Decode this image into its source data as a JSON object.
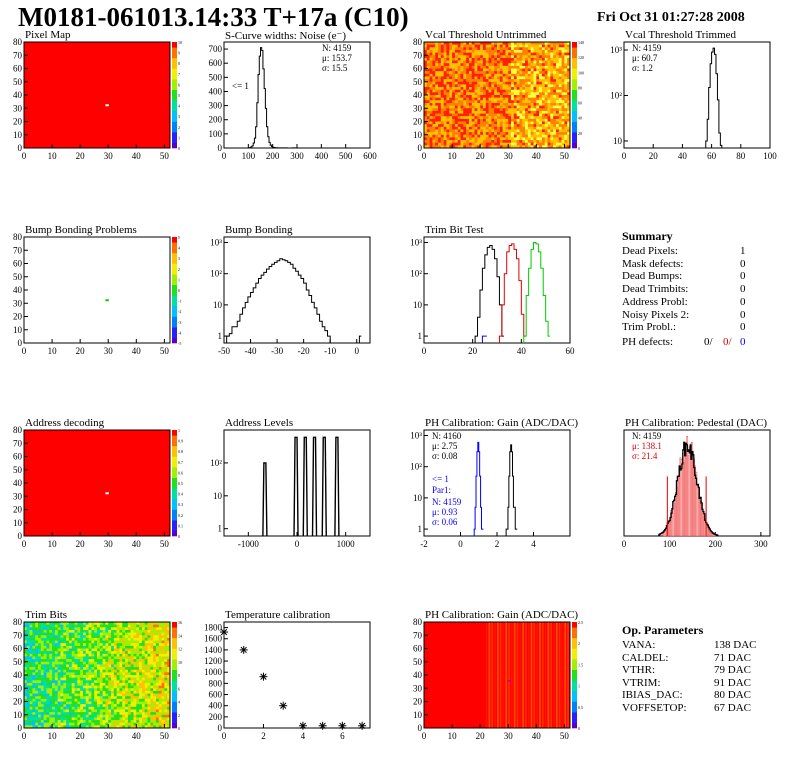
{
  "header": {
    "title": "M0181-061013.14:33 T+17a (C10)",
    "date": "Fri Oct 31 01:27:28 2008"
  },
  "colors": {
    "red": "#ff0000",
    "green": "#00cc00",
    "blue": "#0000ff",
    "yellow": "#ffff33",
    "orange": "#ff9900",
    "black": "#000000"
  },
  "chart_data": [
    {
      "id": "pixel_map",
      "type": "heatmap",
      "title": "Pixel Map",
      "xlim": [
        0,
        52
      ],
      "ylim": [
        0,
        80
      ],
      "xticks": [
        0,
        10,
        20,
        30,
        40,
        50
      ],
      "yticks": [
        0,
        10,
        20,
        30,
        40,
        50,
        60,
        70,
        80
      ],
      "zticks": [
        "0",
        "1",
        "2",
        "3",
        "4",
        "5",
        "6",
        "7",
        "8",
        "9",
        "10"
      ],
      "zlim": [
        0,
        10
      ],
      "fill_value": 10,
      "special_cells": [
        {
          "x": 29,
          "y": 32,
          "z": 0,
          "color": "#ffffff"
        }
      ]
    },
    {
      "id": "scurve",
      "type": "line",
      "title": "S-Curve widths: Noise (e⁻)",
      "xlim": [
        0,
        600
      ],
      "ylim": [
        0,
        750
      ],
      "xticks": [
        0,
        100,
        200,
        300,
        400,
        500,
        600
      ],
      "yticks": [
        0,
        100,
        200,
        300,
        400,
        500,
        600,
        700
      ],
      "stats": {
        "n": "N: 4159",
        "mu": "μ: 153.7",
        "sigma": "σ: 15.5"
      },
      "annotation": "<= 1",
      "x": [
        90,
        100,
        110,
        115,
        120,
        125,
        130,
        135,
        140,
        145,
        150,
        155,
        160,
        165,
        170,
        175,
        180,
        185,
        190,
        195,
        200,
        205,
        210,
        220,
        240,
        260,
        280,
        300
      ],
      "y": [
        0,
        2,
        8,
        15,
        35,
        70,
        150,
        320,
        520,
        650,
        710,
        690,
        560,
        420,
        280,
        150,
        80,
        40,
        20,
        10,
        5,
        3,
        2,
        1,
        1,
        0,
        1,
        0
      ]
    },
    {
      "id": "vcal_untrimmed",
      "type": "heatmap",
      "title": "Vcal Threshold Untrimmed",
      "xlim": [
        0,
        52
      ],
      "ylim": [
        0,
        80
      ],
      "xticks": [
        0,
        10,
        20,
        30,
        40,
        50
      ],
      "yticks": [
        0,
        10,
        20,
        30,
        40,
        50,
        60,
        70,
        80
      ],
      "zticks": [
        "0",
        "20",
        "40",
        "60",
        "80",
        "100",
        "120",
        "140"
      ],
      "zlim": [
        0,
        150
      ]
    },
    {
      "id": "vcal_trimmed",
      "type": "line",
      "title": "Vcal Threshold Trimmed",
      "log": true,
      "xlim": [
        0,
        100
      ],
      "ylim": [
        7,
        1500
      ],
      "xticks": [
        0,
        20,
        40,
        60,
        80,
        100
      ],
      "yticks": [
        10,
        100,
        1000
      ],
      "yticklabels": [
        "10",
        "10²",
        "10³"
      ],
      "stats": {
        "n": "N: 4159",
        "mu": "μ: 60.7",
        "sigma": "σ:  1.2"
      },
      "x": [
        55,
        56,
        57,
        58,
        59,
        60,
        61,
        62,
        63,
        64,
        65,
        66,
        67
      ],
      "y": [
        7,
        10,
        30,
        150,
        500,
        900,
        1100,
        800,
        300,
        80,
        15,
        8,
        7
      ]
    },
    {
      "id": "bump_problems",
      "type": "heatmap",
      "title": "Bump Bonding Problems",
      "xlim": [
        0,
        52
      ],
      "ylim": [
        0,
        80
      ],
      "xticks": [
        0,
        10,
        20,
        30,
        40,
        50
      ],
      "yticks": [
        0,
        10,
        20,
        30,
        40,
        50,
        60,
        70,
        80
      ],
      "zticks": [
        "-5",
        "-4",
        "-3",
        "-2",
        "-1",
        "0",
        "1",
        "2",
        "3",
        "4",
        "5"
      ],
      "zlim": [
        -5,
        5
      ],
      "special_cells": [
        {
          "x": 29,
          "y": 32,
          "z": 1,
          "color": "#00cc00"
        }
      ]
    },
    {
      "id": "bump_bonding",
      "type": "line",
      "title": "Bump Bonding",
      "log": true,
      "xlim": [
        -50,
        5
      ],
      "ylim": [
        0.6,
        1500
      ],
      "xticks": [
        -50,
        -40,
        -30,
        -20,
        -10,
        0
      ],
      "yticks": [
        1,
        10,
        100,
        1000
      ],
      "yticklabels": [
        "1",
        "10",
        "10²",
        "10³"
      ],
      "x": [
        -49,
        -48,
        -47,
        -46,
        -45,
        -44,
        -43,
        -42,
        -41,
        -40,
        -39,
        -38,
        -37,
        -36,
        -35,
        -34,
        -33,
        -32,
        -31,
        -30,
        -29,
        -28,
        -27,
        -26,
        -25,
        -24,
        -23,
        -22,
        -21,
        -20,
        -19,
        -18,
        -17,
        -16,
        -15,
        -14,
        -13,
        -12,
        -11,
        -10,
        1
      ],
      "y": [
        1,
        1.2,
        2,
        2,
        3,
        5,
        8,
        12,
        18,
        25,
        35,
        50,
        70,
        90,
        110,
        140,
        170,
        200,
        230,
        260,
        300,
        280,
        260,
        230,
        200,
        150,
        120,
        90,
        70,
        50,
        30,
        20,
        12,
        8,
        5,
        3,
        2,
        1.5,
        1,
        0.6,
        1
      ]
    },
    {
      "id": "trim_bit_test",
      "type": "line",
      "title": "Trim Bit Test",
      "log": true,
      "xlim": [
        0,
        60
      ],
      "ylim": [
        0.6,
        1500
      ],
      "xticks": [
        0,
        20,
        40,
        60
      ],
      "yticks": [
        1,
        10,
        100,
        1000
      ],
      "yticklabels": [
        "1",
        "10",
        "10²",
        "10³"
      ],
      "series": [
        {
          "color": "#000000",
          "x": [
            21,
            22,
            23,
            24,
            25,
            26,
            27,
            28,
            29,
            30,
            31,
            32
          ],
          "y": [
            1,
            4,
            30,
            150,
            400,
            700,
            800,
            600,
            300,
            80,
            10,
            1
          ]
        },
        {
          "color": "#e00000",
          "x": [
            31,
            32,
            33,
            34,
            35,
            36,
            37,
            38,
            39,
            40,
            41
          ],
          "y": [
            1,
            10,
            100,
            500,
            800,
            900,
            600,
            300,
            60,
            5,
            1
          ]
        },
        {
          "color": "#00cc00",
          "x": [
            41,
            42,
            43,
            44,
            45,
            46,
            47,
            48,
            49,
            50,
            51
          ],
          "y": [
            1,
            20,
            150,
            600,
            1000,
            900,
            500,
            150,
            20,
            3,
            1
          ]
        },
        {
          "color": "#0000ff",
          "x": [
            24,
            25
          ],
          "y": [
            1,
            1
          ]
        }
      ]
    },
    {
      "id": "address_decoding",
      "type": "heatmap",
      "title": "Address decoding",
      "xlim": [
        0,
        52
      ],
      "ylim": [
        0,
        80
      ],
      "xticks": [
        0,
        10,
        20,
        30,
        40,
        50
      ],
      "yticks": [
        0,
        10,
        20,
        30,
        40,
        50,
        60,
        70,
        80
      ],
      "zticks": [
        "0",
        "0.1",
        "0.2",
        "0.3",
        "0.4",
        "0.5",
        "0.6",
        "0.7",
        "0.8",
        "0.9",
        "1"
      ],
      "zlim": [
        0,
        1
      ],
      "fill_value": 1,
      "special_cells": [
        {
          "x": 29,
          "y": 32,
          "z": 0,
          "color": "#ffffff"
        }
      ]
    },
    {
      "id": "address_levels",
      "type": "line",
      "title": "Address Levels",
      "log": true,
      "xlim": [
        -1500,
        1500
      ],
      "ylim": [
        0.6,
        1000
      ],
      "xticks": [
        -1000,
        0,
        1000
      ],
      "yticks": [
        1,
        10,
        100
      ],
      "yticklabels": [
        "1",
        "10",
        "10²"
      ],
      "peaks": [
        {
          "x": -660,
          "h": 100
        },
        {
          "x": -20,
          "h": 600
        },
        {
          "x": 170,
          "h": 600
        },
        {
          "x": 360,
          "h": 600
        },
        {
          "x": 560,
          "h": 600
        },
        {
          "x": 820,
          "h": 600
        }
      ]
    },
    {
      "id": "ph_gain",
      "type": "line",
      "title": "PH Calibration: Gain (ADC/DAC)",
      "log": true,
      "xlim": [
        -2,
        6
      ],
      "ylim": [
        0.6,
        1500
      ],
      "xticks": [
        -2,
        0,
        2,
        4
      ],
      "yticks": [
        1,
        10,
        100,
        1000
      ],
      "yticklabels": [
        "1",
        "10",
        "10²",
        "10³"
      ],
      "stats": {
        "n": "N: 4160",
        "mu": "μ: 2.75",
        "sigma": "σ: 0.08"
      },
      "stats2": {
        "lt": "<= 1",
        "par": "Par1:",
        "n": "N: 4159",
        "mu": "μ: 0.93",
        "sigma": "σ: 0.06"
      },
      "series": [
        {
          "color": "#000000",
          "x": [
            2.5,
            2.6,
            2.65,
            2.7,
            2.75,
            2.8,
            2.85,
            2.9,
            3.0
          ],
          "y": [
            1,
            5,
            50,
            300,
            500,
            300,
            50,
            5,
            1
          ]
        },
        {
          "color": "#0000ff",
          "x": [
            0.75,
            0.8,
            0.85,
            0.9,
            0.95,
            1.0,
            1.05,
            1.1,
            1.15
          ],
          "y": [
            1,
            5,
            50,
            300,
            600,
            300,
            50,
            5,
            1
          ]
        }
      ]
    },
    {
      "id": "ph_pedestal",
      "type": "bar",
      "title": "PH Calibration: Pedestal (DAC)",
      "xlim": [
        0,
        320
      ],
      "ylim": [
        0,
        80
      ],
      "xticks": [
        0,
        100,
        200,
        300
      ],
      "stats": {
        "n": "N: 4159",
        "mu": "μ: 138.1",
        "sigma": "σ: 21.4"
      },
      "mu": 138,
      "sigma": 21.4,
      "peak": 68,
      "fit_lines": [
        95,
        180
      ]
    },
    {
      "id": "trim_bits",
      "type": "heatmap",
      "title": "Trim Bits",
      "xlim": [
        0,
        52
      ],
      "ylim": [
        0,
        80
      ],
      "xticks": [
        0,
        10,
        20,
        30,
        40,
        50
      ],
      "yticks": [
        0,
        10,
        20,
        30,
        40,
        50,
        60,
        70,
        80
      ],
      "zticks": [
        "0",
        "2",
        "4",
        "6",
        "8",
        "10",
        "12",
        "14",
        "16"
      ],
      "zlim": [
        0,
        16
      ]
    },
    {
      "id": "temperature",
      "type": "scatter",
      "title": "Temperature calibration",
      "xlim": [
        0,
        7.4
      ],
      "ylim": [
        0,
        1900
      ],
      "xticks": [
        0,
        2,
        4,
        6
      ],
      "yticks": [
        0,
        200,
        400,
        600,
        800,
        1000,
        1200,
        1400,
        1600,
        1800
      ],
      "x": [
        0,
        1,
        2,
        3,
        4,
        5,
        6,
        7
      ],
      "y": [
        1720,
        1400,
        920,
        400,
        40,
        40,
        40,
        40
      ]
    },
    {
      "id": "ph_gain_map",
      "type": "heatmap",
      "title": "PH Calibration: Gain (ADC/DAC)",
      "xlim": [
        0,
        52
      ],
      "ylim": [
        0,
        80
      ],
      "xticks": [
        0,
        10,
        20,
        30,
        40,
        50
      ],
      "yticks": [
        0,
        10,
        20,
        30,
        40,
        50,
        60,
        70,
        80
      ],
      "zticks": [
        "0",
        "0.5",
        "1",
        "1.5",
        "2",
        "2.5"
      ],
      "zlim": [
        0,
        2.8
      ]
    }
  ],
  "summary": {
    "title": "Summary",
    "rows": [
      {
        "label": "Dead Pixels:",
        "value": "1"
      },
      {
        "label": "Mask defects:",
        "value": "0"
      },
      {
        "label": "Dead Bumps:",
        "value": "0"
      },
      {
        "label": "Dead Trimbits:",
        "value": "0"
      },
      {
        "label": "Address Probl:",
        "value": "0"
      },
      {
        "label": "Noisy Pixels 2:",
        "value": "0"
      },
      {
        "label": "Trim Probl.:",
        "value": "0"
      }
    ],
    "ph_label": "PH defects:",
    "ph_values": [
      "0/",
      "0/",
      "0"
    ]
  },
  "op_params": {
    "title": "Op. Parameters",
    "rows": [
      {
        "label": "VANA:",
        "value": "138 DAC"
      },
      {
        "label": "CALDEL:",
        "value": "71 DAC"
      },
      {
        "label": "VTHR:",
        "value": "79 DAC"
      },
      {
        "label": "VTRIM:",
        "value": "91 DAC"
      },
      {
        "label": "IBIAS_DAC:",
        "value": "80 DAC"
      },
      {
        "label": "VOFFSETOP:",
        "value": "67 DAC"
      }
    ]
  }
}
